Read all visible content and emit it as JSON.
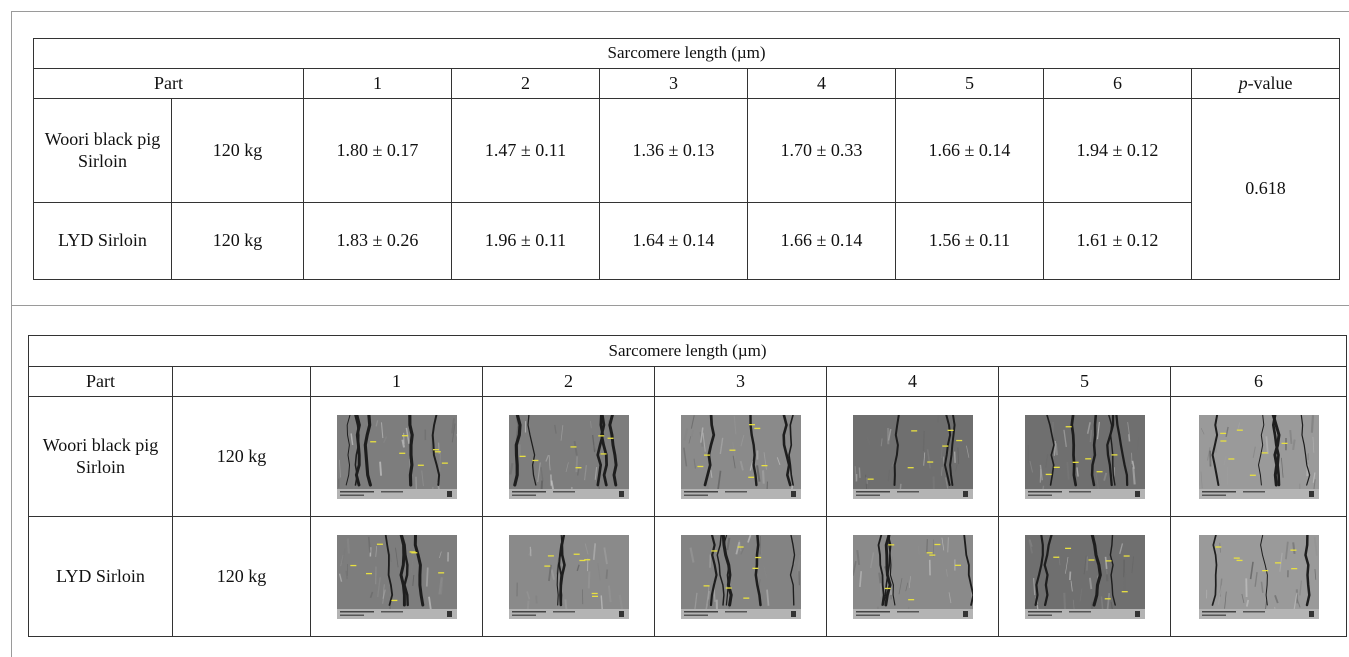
{
  "table1": {
    "title": "Sarcomere length (µm)",
    "part_header": "Part",
    "col_headers": [
      "1",
      "2",
      "3",
      "4",
      "5",
      "6"
    ],
    "pvalue_header_italic": "p",
    "pvalue_header_rest": "-value",
    "rows": [
      {
        "part": "Woori black pig Sirloin",
        "weight": "120 kg",
        "values": [
          "1.80 ± 0.17",
          "1.47 ± 0.11",
          "1.36 ± 0.13",
          "1.70 ± 0.33",
          "1.66 ± 0.14",
          "1.94 ± 0.12"
        ]
      },
      {
        "part": "LYD Sirloin",
        "weight": "120 kg",
        "values": [
          "1.83 ± 0.26",
          "1.96 ± 0.11",
          "1.64 ± 0.14",
          "1.66 ± 0.14",
          "1.56 ± 0.11",
          "1.61 ± 0.12"
        ]
      }
    ],
    "pvalue": "0.618"
  },
  "table2": {
    "title": "Sarcomere length (µm)",
    "part_header": "Part",
    "col_headers": [
      "1",
      "2",
      "3",
      "4",
      "5",
      "6"
    ],
    "rows": [
      {
        "part": "Woori black pig Sirloin",
        "weight": "120 kg"
      },
      {
        "part": "LYD Sirloin",
        "weight": "120 kg"
      }
    ]
  }
}
